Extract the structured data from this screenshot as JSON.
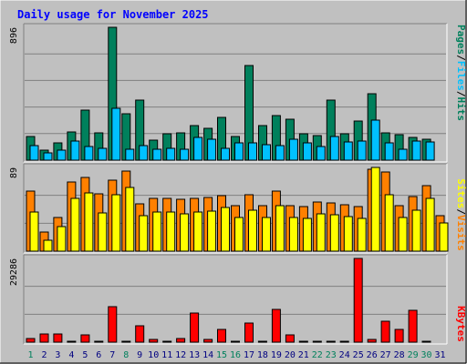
{
  "title": "Daily usage for November 2025",
  "colors": {
    "background": "#c0c0c0",
    "panel": "#c0c0c0",
    "grid": "#808080",
    "pages": "#00805c",
    "files": "#00c0ff",
    "hits": "#00805c",
    "visits": "#ff8000",
    "sites": "#ffff00",
    "kbytes": "#ff0000",
    "title": "#0000ff",
    "weekday": "#000080",
    "weekend": "#00805c"
  },
  "side_labels": {
    "top": [
      "Pages",
      "Files",
      "Hits"
    ],
    "middle": [
      "Sites",
      "Visits"
    ],
    "bottom": [
      "KBytes"
    ]
  },
  "axis_max_labels": {
    "top": "896",
    "middle": "89",
    "bottom": "29286"
  },
  "chart_data": {
    "type": "bar",
    "days": [
      "1",
      "2",
      "3",
      "4",
      "5",
      "6",
      "7",
      "8",
      "9",
      "10",
      "11",
      "12",
      "13",
      "14",
      "15",
      "16",
      "17",
      "18",
      "19",
      "20",
      "21",
      "22",
      "23",
      "24",
      "25",
      "26",
      "27",
      "28",
      "29",
      "30",
      "31"
    ],
    "weekend_days": [
      1,
      8,
      15,
      16,
      22,
      23,
      29,
      30
    ],
    "panels": [
      {
        "name": "top",
        "ylim": [
          0,
          896
        ],
        "series": [
          {
            "name": "Hits",
            "values": [
              158,
              70,
              118,
              193,
              340,
              185,
              896,
              315,
              407,
              135,
              178,
              183,
              233,
              214,
              289,
              160,
              637,
              232,
              302,
              275,
              176,
              168,
              406,
              178,
              264,
              445,
              185,
              172,
              155,
              143,
              0
            ]
          },
          {
            "name": "Files",
            "values": [
              97,
              51,
              68,
              130,
              95,
              79,
              350,
              75,
              100,
              76,
              79,
              75,
              152,
              140,
              82,
              115,
              115,
              103,
              97,
              141,
              114,
              90,
              159,
              122,
              126,
              269,
              116,
              73,
              130,
              124,
              0
            ]
          }
        ]
      },
      {
        "name": "middle",
        "ylim": [
          0,
          89
        ],
        "series": [
          {
            "name": "Visits",
            "values": [
              64,
              20,
              36,
              74,
              78,
              61,
              75,
              85,
              50,
              56,
              56,
              55,
              56,
              57,
              59,
              48,
              60,
              48,
              64,
              48,
              47,
              52,
              51,
              49,
              47,
              87,
              84,
              48,
              58,
              70,
              38
            ]
          },
          {
            "name": "Sites",
            "values": [
              42,
              12,
              26,
              56,
              62,
              41,
              60,
              68,
              38,
              42,
              42,
              40,
              42,
              43,
              46,
              36,
              44,
              36,
              48,
              36,
              35,
              40,
              39,
              37,
              35,
              89,
              60,
              36,
              44,
              56,
              30
            ]
          }
        ]
      },
      {
        "name": "bottom",
        "ylim": [
          0,
          29286
        ],
        "series": [
          {
            "name": "KBytes",
            "values": [
              1200,
              3000,
              3000,
              400,
              2600,
              400,
              12500,
              400,
              5600,
              1100,
              400,
              1300,
              10200,
              800,
              4600,
              400,
              6600,
              400,
              11600,
              2700,
              400,
              400,
              400,
              400,
              29286,
              900,
              7300,
              4600,
              11300,
              400,
              0
            ]
          }
        ]
      }
    ]
  }
}
